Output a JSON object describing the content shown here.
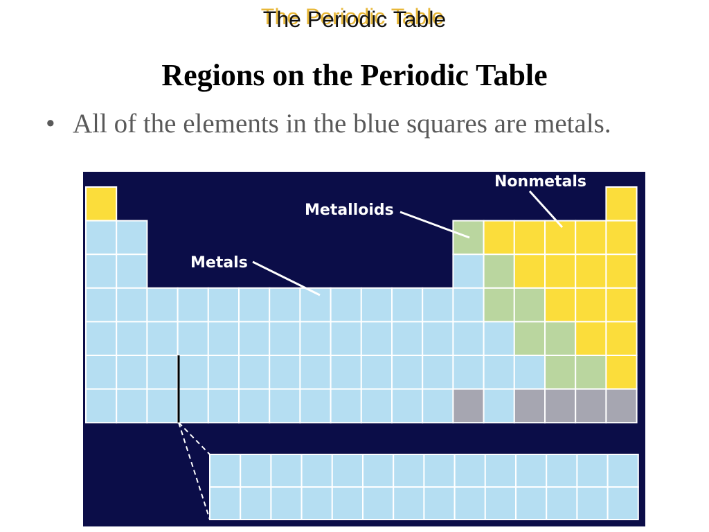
{
  "header": {
    "title": "The Periodic Table"
  },
  "slide": {
    "title": "Regions on the Periodic Table",
    "bullet": "All of the elements in the blue squares are metals."
  },
  "figure": {
    "labels": {
      "nonmetals": "Nonmetals",
      "metalloids": "Metalloids",
      "metals": "Metals"
    },
    "colors": {
      "background": "#0b0d48",
      "metal": "#b5def2",
      "nonmetal": "#fbdd3b",
      "metalloid": "#bad69f",
      "unknown": "#a6a6b1",
      "label": "#ffffff"
    }
  }
}
